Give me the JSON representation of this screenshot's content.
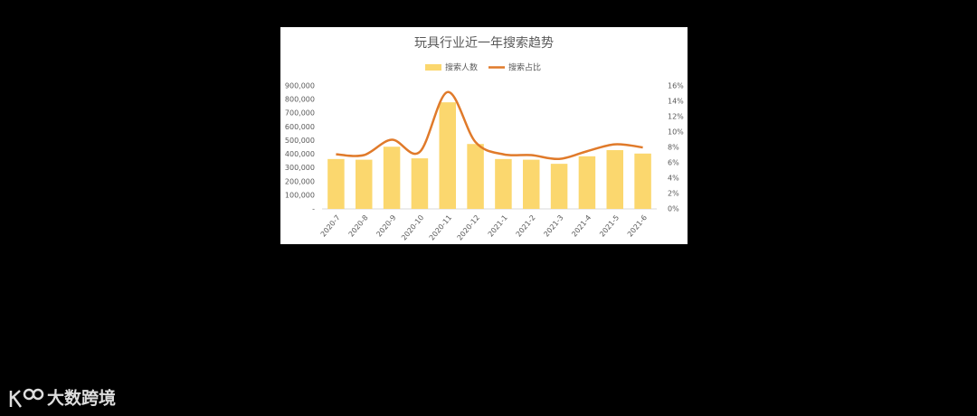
{
  "chart_data": {
    "type": "bar-line",
    "title": "玩具行业近一年搜索趋势",
    "categories": [
      "2020-7",
      "2020-8",
      "2020-9",
      "2020-10",
      "2020-11",
      "2020-12",
      "2021-1",
      "2021-2",
      "2021-3",
      "2021-4",
      "2021-5",
      "2021-6"
    ],
    "series": [
      {
        "name": "搜索人数",
        "type": "bar",
        "color": "#fbd76e",
        "values": [
          365000,
          360000,
          455000,
          370000,
          780000,
          475000,
          365000,
          360000,
          330000,
          385000,
          430000,
          405000
        ]
      },
      {
        "name": "搜索占比",
        "type": "line",
        "axis": "y2",
        "color": "#e07a2a",
        "values": [
          7.1,
          7.0,
          9.0,
          7.4,
          15.2,
          8.7,
          7.1,
          7.0,
          6.5,
          7.5,
          8.4,
          8.0
        ]
      }
    ],
    "ylim": [
      0,
      900000
    ],
    "yticks": [
      {
        "value": 0,
        "label": "-"
      },
      {
        "value": 100000,
        "label": "100,000"
      },
      {
        "value": 200000,
        "label": "200,000"
      },
      {
        "value": 300000,
        "label": "300,000"
      },
      {
        "value": 400000,
        "label": "400,000"
      },
      {
        "value": 500000,
        "label": "500,000"
      },
      {
        "value": 600000,
        "label": "600,000"
      },
      {
        "value": 700000,
        "label": "700,000"
      },
      {
        "value": 800000,
        "label": "800,000"
      },
      {
        "value": 900000,
        "label": "900,000"
      }
    ],
    "y2lim": [
      0,
      16
    ],
    "y2ticks": [
      {
        "value": 0,
        "label": "0%"
      },
      {
        "value": 2,
        "label": "2%"
      },
      {
        "value": 4,
        "label": "4%"
      },
      {
        "value": 6,
        "label": "6%"
      },
      {
        "value": 8,
        "label": "8%"
      },
      {
        "value": 10,
        "label": "10%"
      },
      {
        "value": 12,
        "label": "12%"
      },
      {
        "value": 14,
        "label": "14%"
      },
      {
        "value": 16,
        "label": "16%"
      }
    ],
    "legend": "top"
  },
  "watermark": "大数跨境"
}
